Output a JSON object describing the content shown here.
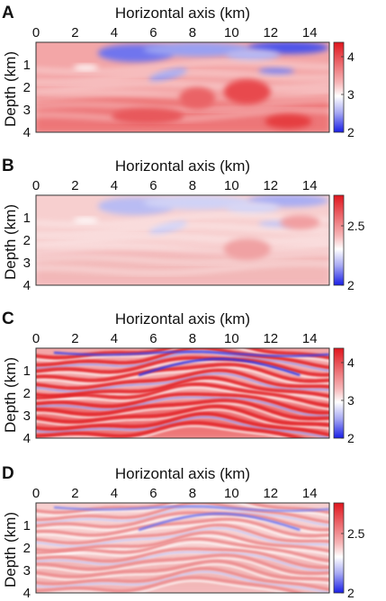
{
  "figure": {
    "panels": [
      {
        "letter": "A",
        "x_title": "Horizontal axis (km)",
        "y_title": "Depth (km)",
        "x_ticks": [
          "0",
          "2",
          "4",
          "6",
          "8",
          "10",
          "12",
          "14"
        ],
        "y_ticks": [
          "1",
          "2",
          "3",
          "4"
        ],
        "colorbar_ticks": [
          "4",
          "3",
          "2"
        ],
        "style": "smooth"
      },
      {
        "letter": "B",
        "x_title": "Horizontal axis (km)",
        "y_title": "Depth (km)",
        "x_ticks": [
          "0",
          "2",
          "4",
          "6",
          "8",
          "10",
          "12",
          "14"
        ],
        "y_ticks": [
          "1",
          "2",
          "3",
          "4"
        ],
        "colorbar_ticks": [
          "2.5",
          "2"
        ],
        "style": "smooth-faint"
      },
      {
        "letter": "C",
        "x_title": "Horizontal axis (km)",
        "y_title": "Depth (km)",
        "x_ticks": [
          "0",
          "2",
          "4",
          "6",
          "8",
          "10",
          "12",
          "14"
        ],
        "y_ticks": [
          "1",
          "2",
          "3",
          "4"
        ],
        "colorbar_ticks": [
          "4",
          "3",
          "2"
        ],
        "style": "layered"
      },
      {
        "letter": "D",
        "x_title": "Horizontal axis (km)",
        "y_title": "Depth (km)",
        "x_ticks": [
          "0",
          "2",
          "4",
          "6",
          "8",
          "10",
          "12",
          "14"
        ],
        "y_ticks": [
          "1",
          "2",
          "3",
          "4"
        ],
        "colorbar_ticks": [
          "2.5",
          "2"
        ],
        "style": "layered-faint"
      }
    ],
    "colors": {
      "red": "#e8222a",
      "white": "#ffffff",
      "blue": "#1f24e8",
      "frame": "#333333"
    }
  }
}
